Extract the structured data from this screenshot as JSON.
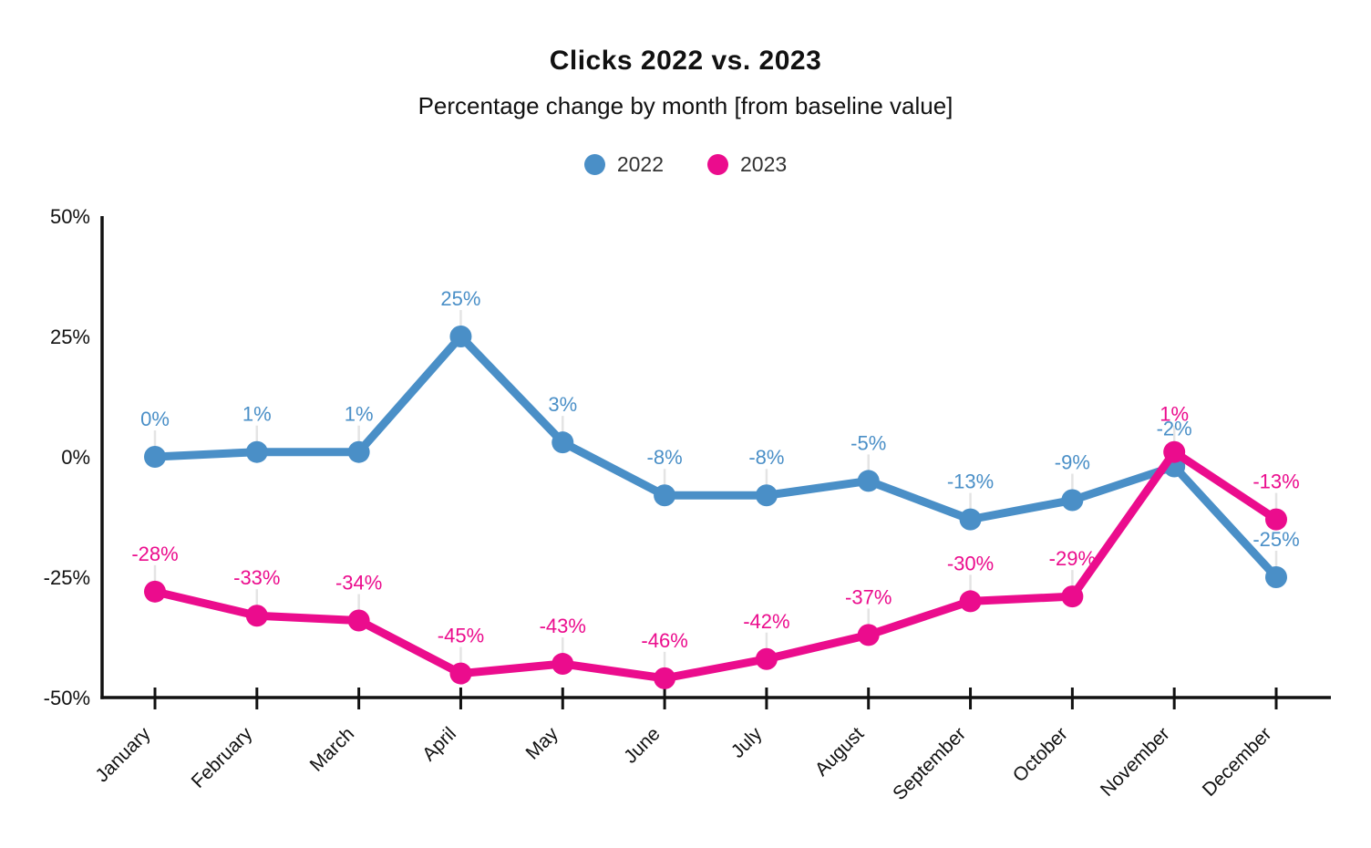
{
  "chart_data": {
    "type": "line",
    "title": "Clicks 2022 vs. 2023",
    "subtitle": "Percentage change by month [from baseline value]",
    "categories": [
      "January",
      "February",
      "March",
      "April",
      "May",
      "June",
      "July",
      "August",
      "September",
      "October",
      "November",
      "December"
    ],
    "series": [
      {
        "name": "2022",
        "color": "#4A8FC7",
        "values": [
          0,
          1,
          1,
          25,
          3,
          -8,
          -8,
          -5,
          -13,
          -9,
          -2,
          -25
        ]
      },
      {
        "name": "2023",
        "color": "#EB0C8D",
        "values": [
          -28,
          -33,
          -34,
          -45,
          -43,
          -46,
          -42,
          -37,
          -30,
          -29,
          1,
          -13
        ]
      }
    ],
    "ylim": [
      -50,
      50
    ],
    "yticks": [
      50,
      25,
      0,
      -25,
      -50
    ],
    "label_suffix": "%",
    "grid": false,
    "legend_position": "top-center",
    "xlabel": "",
    "ylabel": "",
    "axis_color": "#111111",
    "leader_line_color": "#e4e4e4"
  }
}
